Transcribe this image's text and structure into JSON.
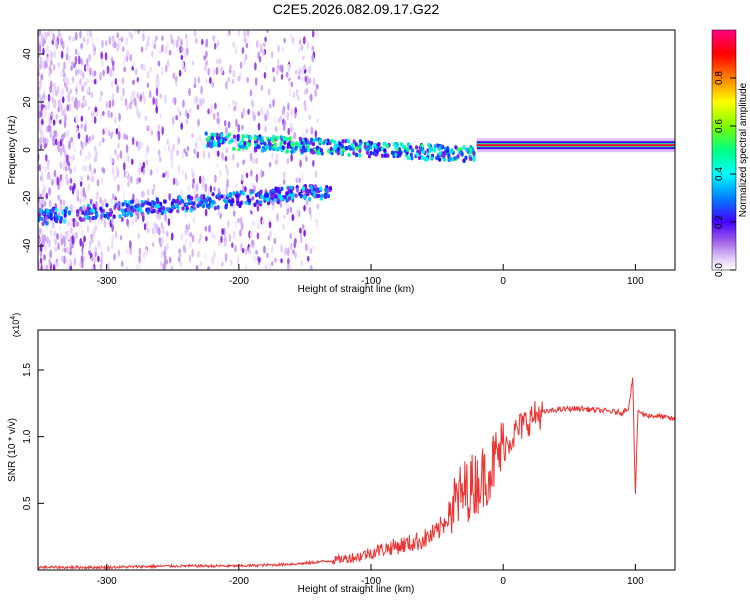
{
  "title": "C2E5.2026.082.09.17.G22",
  "chart_data": [
    {
      "type": "heatmap",
      "xlabel": "Height of straight line (km)",
      "ylabel": "Frequency (Hz)",
      "xlim": [
        -352,
        130
      ],
      "ylim": [
        -50,
        50
      ],
      "xticks": [
        -300,
        -200,
        -100,
        0,
        100
      ],
      "xtick_labels": [
        "-300",
        "-200",
        "-100",
        "0",
        "100"
      ],
      "yticks": [
        -40,
        -20,
        0,
        20,
        40
      ],
      "ytick_labels": [
        "-40",
        "-20",
        "0",
        "20",
        "40"
      ],
      "colorbar": {
        "label": "Normalized spectral amplitude",
        "range": [
          0,
          1
        ],
        "ticks": [
          0.0,
          0.2,
          0.4,
          0.6,
          0.8
        ],
        "tick_labels": [
          "0.0",
          "0.2",
          "0.4",
          "0.6",
          "0.8"
        ],
        "colormap": [
          "#ffffff",
          "#d8b8f8",
          "#8a2be2",
          "#3300ff",
          "#0080ff",
          "#00ffff",
          "#00ff80",
          "#80ff00",
          "#ffff00",
          "#ff8000",
          "#ff0000",
          "#ff0080"
        ]
      },
      "features": [
        {
          "name": "scattered noise",
          "x_range": [
            -352,
            -140
          ],
          "freq_range": [
            -50,
            50
          ],
          "amplitude": 0.1
        },
        {
          "name": "lower band",
          "x_range": [
            -352,
            -130
          ],
          "freq_start": -28,
          "freq_end": -17,
          "amplitude": 0.35
        },
        {
          "name": "main band",
          "x_range": [
            -225,
            -20
          ],
          "freq_start": 4,
          "freq_end": -2,
          "amplitude": 0.45
        },
        {
          "name": "carrier line",
          "x_range": [
            -20,
            130
          ],
          "freq": 2,
          "amplitude": 0.95
        }
      ]
    },
    {
      "type": "line",
      "xlabel": "Height of straight line (km)",
      "ylabel": "SNR (10 * v/v)",
      "scale_label": "(x10",
      "scale_exponent": "4",
      "xlim": [
        -352,
        130
      ],
      "ylim": [
        0,
        1.8
      ],
      "xticks": [
        -300,
        -200,
        -100,
        0,
        100
      ],
      "xtick_labels": [
        "-300",
        "-200",
        "-100",
        "0",
        "100"
      ],
      "yticks": [
        0.5,
        1.0,
        1.5
      ],
      "ytick_labels": [
        "0.5",
        "1.0",
        "1.5"
      ],
      "series": [
        {
          "name": "SNR",
          "color": "#ee3333",
          "x": [
            -352,
            -300,
            -250,
            -200,
            -170,
            -150,
            -130,
            -110,
            -100,
            -90,
            -80,
            -70,
            -60,
            -50,
            -45,
            -40,
            -35,
            -30,
            -25,
            -20,
            -15,
            -10,
            -5,
            0,
            5,
            10,
            15,
            20,
            25,
            30,
            40,
            50,
            60,
            70,
            80,
            90,
            95,
            98,
            100,
            102,
            105,
            110,
            120,
            130
          ],
          "y": [
            0.02,
            0.02,
            0.03,
            0.03,
            0.04,
            0.05,
            0.07,
            0.1,
            0.13,
            0.16,
            0.18,
            0.2,
            0.23,
            0.28,
            0.35,
            0.45,
            0.52,
            0.58,
            0.62,
            0.66,
            0.7,
            0.76,
            0.84,
            0.92,
            0.98,
            1.04,
            1.09,
            1.13,
            1.16,
            1.18,
            1.2,
            1.21,
            1.21,
            1.2,
            1.19,
            1.18,
            1.22,
            1.45,
            0.55,
            1.2,
            1.17,
            1.16,
            1.15,
            1.13
          ]
        }
      ]
    }
  ]
}
